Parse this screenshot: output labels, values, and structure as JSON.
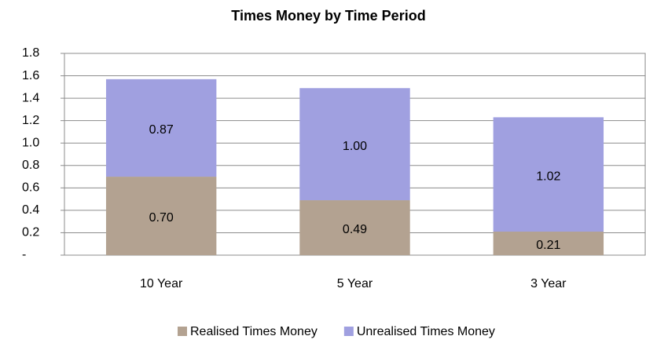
{
  "chart_data": {
    "type": "stacked-bar",
    "title": "Times Money by Time Period",
    "categories": [
      "10 Year",
      "5 Year",
      "3 Year"
    ],
    "series": [
      {
        "name": "Realised Times Money",
        "color": "#b3a291",
        "values": [
          0.7,
          0.49,
          0.21
        ],
        "value_labels": [
          "0.70",
          "0.49",
          "0.21"
        ]
      },
      {
        "name": "Unrealised Times Money",
        "color": "#a0a0e0",
        "values": [
          0.87,
          1.0,
          1.02
        ],
        "value_labels": [
          "0.87",
          "1.00",
          "1.02"
        ]
      }
    ],
    "ylim": [
      0,
      1.8
    ],
    "yticks": [
      {
        "value": 0,
        "label": "-"
      },
      0.2,
      0.4,
      0.6,
      0.8,
      {
        "value": 1,
        "label": "1.0"
      },
      1.2,
      1.4,
      1.6,
      1.8
    ],
    "grid": true,
    "legend": "bottom"
  }
}
